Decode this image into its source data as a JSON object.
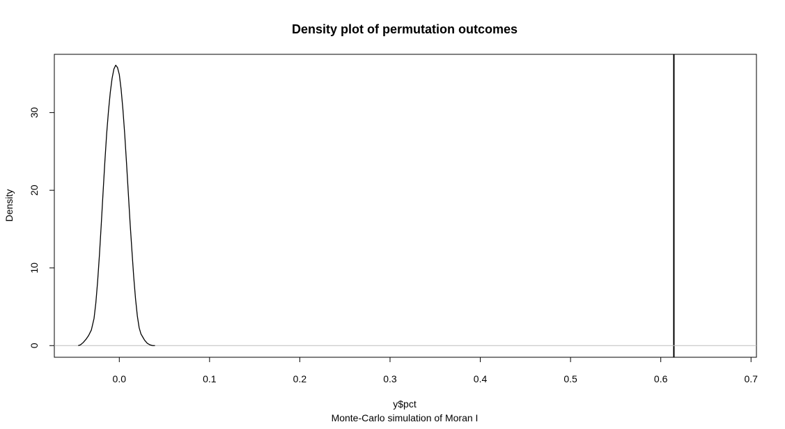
{
  "chart_data": {
    "type": "line",
    "title": "Density plot of permutation outcomes",
    "xlabel": "y$pct",
    "ylabel": "Density",
    "subtitle": "Monte-Carlo simulation of Moran I",
    "xlim": [
      -0.072,
      0.706
    ],
    "ylim": [
      -1.5,
      37.5
    ],
    "x_ticks": [
      {
        "value": 0.0,
        "label": "0.0"
      },
      {
        "value": 0.1,
        "label": "0.1"
      },
      {
        "value": 0.2,
        "label": "0.2"
      },
      {
        "value": 0.3,
        "label": "0.3"
      },
      {
        "value": 0.4,
        "label": "0.4"
      },
      {
        "value": 0.5,
        "label": "0.5"
      },
      {
        "value": 0.6,
        "label": "0.6"
      },
      {
        "value": 0.7,
        "label": "0.7"
      }
    ],
    "y_ticks": [
      {
        "value": 0,
        "label": "0"
      },
      {
        "value": 10,
        "label": "10"
      },
      {
        "value": 20,
        "label": "20"
      },
      {
        "value": 30,
        "label": "30"
      }
    ],
    "series": [
      {
        "x": [
          -0.0455,
          -0.043,
          -0.04,
          -0.037,
          -0.034,
          -0.031,
          -0.028,
          -0.026,
          -0.024,
          -0.022,
          -0.02,
          -0.018,
          -0.016,
          -0.014,
          -0.012,
          -0.01,
          -0.008,
          -0.006,
          -0.004,
          -0.002,
          0.0,
          0.002,
          0.004,
          0.006,
          0.008,
          0.01,
          0.012,
          0.014,
          0.016,
          0.018,
          0.02,
          0.022,
          0.024,
          0.026,
          0.028,
          0.031,
          0.034,
          0.037,
          0.0395
        ],
        "y": [
          0.0,
          0.1,
          0.4,
          0.8,
          1.3,
          2.0,
          3.5,
          5.5,
          8.3,
          11.7,
          15.6,
          19.7,
          23.7,
          27.3,
          30.2,
          32.6,
          34.4,
          35.6,
          36.1,
          35.8,
          34.9,
          33.0,
          30.4,
          27.2,
          23.5,
          19.6,
          15.7,
          12.2,
          8.8,
          6.0,
          3.8,
          2.3,
          1.5,
          1.1,
          0.7,
          0.3,
          0.1,
          0.0,
          0.0
        ],
        "color": "#000000"
      }
    ],
    "reference_lines": [
      {
        "orientation": "vertical",
        "x": 0.6145,
        "color": "#000000"
      },
      {
        "orientation": "horizontal",
        "y": 0,
        "color": "#bebebe"
      }
    ],
    "grid": false,
    "legend": "none"
  }
}
